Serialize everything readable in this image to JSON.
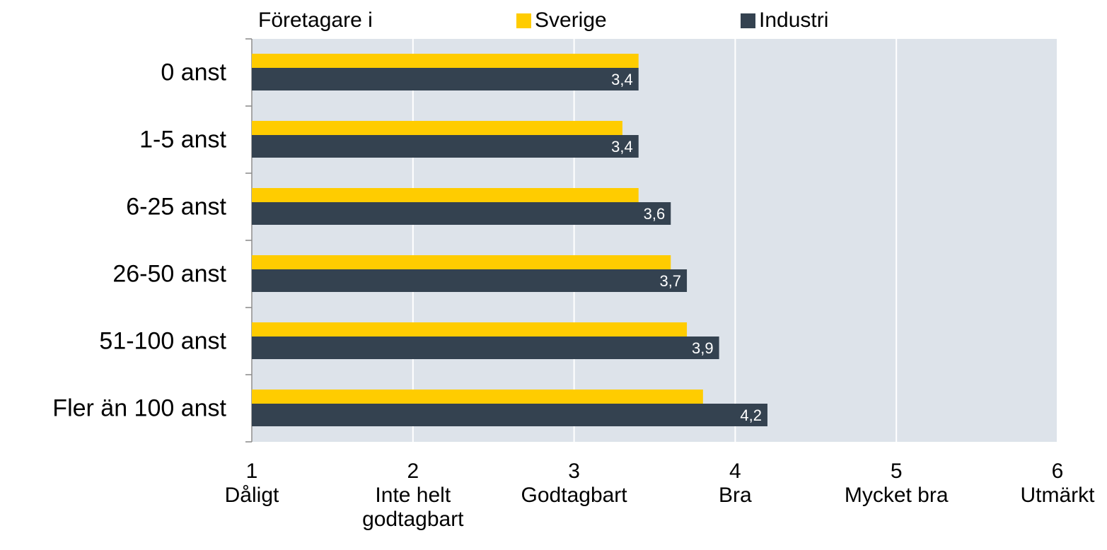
{
  "chart_data": {
    "type": "bar",
    "orientation": "horizontal",
    "legend_title": "Företagare i",
    "categories": [
      "0 anst",
      "1-5 anst",
      "6-25 anst",
      "26-50 anst",
      "51-100 anst",
      "Fler än 100 anst"
    ],
    "series": [
      {
        "name": "Sverige",
        "color": "#ffcc00",
        "values": [
          3.4,
          3.3,
          3.4,
          3.6,
          3.7,
          3.8
        ]
      },
      {
        "name": "Industri",
        "color": "#344250",
        "values": [
          3.4,
          3.4,
          3.6,
          3.7,
          3.9,
          4.2
        ],
        "value_labels": [
          "3,4",
          "3,4",
          "3,6",
          "3,7",
          "3,9",
          "4,2"
        ]
      }
    ],
    "xlim": [
      1,
      6
    ],
    "xticks": [
      {
        "value": 1,
        "label": "1\nDåligt"
      },
      {
        "value": 2,
        "label": "2\nInte helt\ngodtagbart"
      },
      {
        "value": 3,
        "label": "3\nGodtagbart"
      },
      {
        "value": 4,
        "label": "4\nBra"
      },
      {
        "value": 5,
        "label": "5\nMycket bra"
      },
      {
        "value": 6,
        "label": "6\nUtmärkt"
      }
    ],
    "grid": true,
    "plot_background": "#dde3ea",
    "legend_position": "top"
  }
}
